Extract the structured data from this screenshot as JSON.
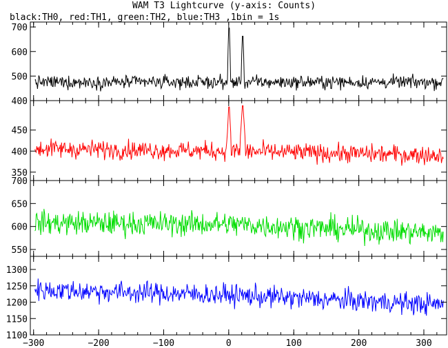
{
  "chart_data": {
    "type": "line",
    "title": "WAM T3 Lightcurve (y-axis: Counts)",
    "subtitle": "black:TH0, red:TH1, green:TH2, blue:TH3 ,1bin = 1s",
    "xlabel": "",
    "ylabel": "",
    "xlim": [
      -305,
      335
    ],
    "x_ticks": [
      -300,
      -200,
      -100,
      0,
      100,
      200,
      300
    ],
    "x_tick_labels": [
      "−300",
      "−200",
      "−100",
      "0",
      "100",
      "200",
      "300"
    ],
    "x_data_range": [
      -298,
      330
    ],
    "bin_seconds": 1,
    "grid": false,
    "legend": "none (described in subtitle)",
    "panels": [
      {
        "series": "TH0",
        "color": "#000000",
        "ylim": [
          400,
          720
        ],
        "y_ticks": [
          400,
          500,
          600,
          700
        ],
        "y_tick_labels": [
          "400",
          "500",
          "600",
          "700"
        ],
        "baseline": 475,
        "noise": 24,
        "trend": [
          [
            -298,
            475
          ],
          [
            330,
            475
          ]
        ],
        "peaks": [
          {
            "x": 0.5,
            "value": 740,
            "width": 2
          },
          {
            "x": 21.5,
            "value": 700,
            "width": 2
          }
        ]
      },
      {
        "series": "TH1",
        "color": "#ff0000",
        "ylim": [
          330,
          520
        ],
        "y_ticks": [
          350,
          400,
          450
        ],
        "y_tick_labels": [
          "350",
          "400",
          "450"
        ],
        "baseline": 402,
        "noise": 20,
        "trend": [
          [
            -298,
            406
          ],
          [
            0,
            400
          ],
          [
            330,
            390
          ]
        ],
        "peaks": [
          {
            "x": 0.5,
            "value": 520,
            "width": 3
          },
          {
            "x": 21.5,
            "value": 520,
            "width": 4
          }
        ]
      },
      {
        "series": "TH2",
        "color": "#00dd00",
        "ylim": [
          535,
          700
        ],
        "y_ticks": [
          550,
          600,
          650,
          700
        ],
        "y_tick_labels": [
          "550",
          "600",
          "650",
          "700"
        ],
        "baseline": 605,
        "noise": 24,
        "trend": [
          [
            -298,
            608
          ],
          [
            0,
            605
          ],
          [
            330,
            585
          ]
        ],
        "peaks": []
      },
      {
        "series": "TH3",
        "color": "#0000ff",
        "ylim": [
          1100,
          1340
        ],
        "y_ticks": [
          1100,
          1150,
          1200,
          1250,
          1300
        ],
        "y_tick_labels": [
          "1100",
          "1150",
          "1200",
          "1250",
          "1300"
        ],
        "baseline": 1225,
        "noise": 30,
        "trend": [
          [
            -298,
            1238
          ],
          [
            0,
            1222
          ],
          [
            330,
            1192
          ]
        ],
        "peaks": []
      }
    ]
  }
}
